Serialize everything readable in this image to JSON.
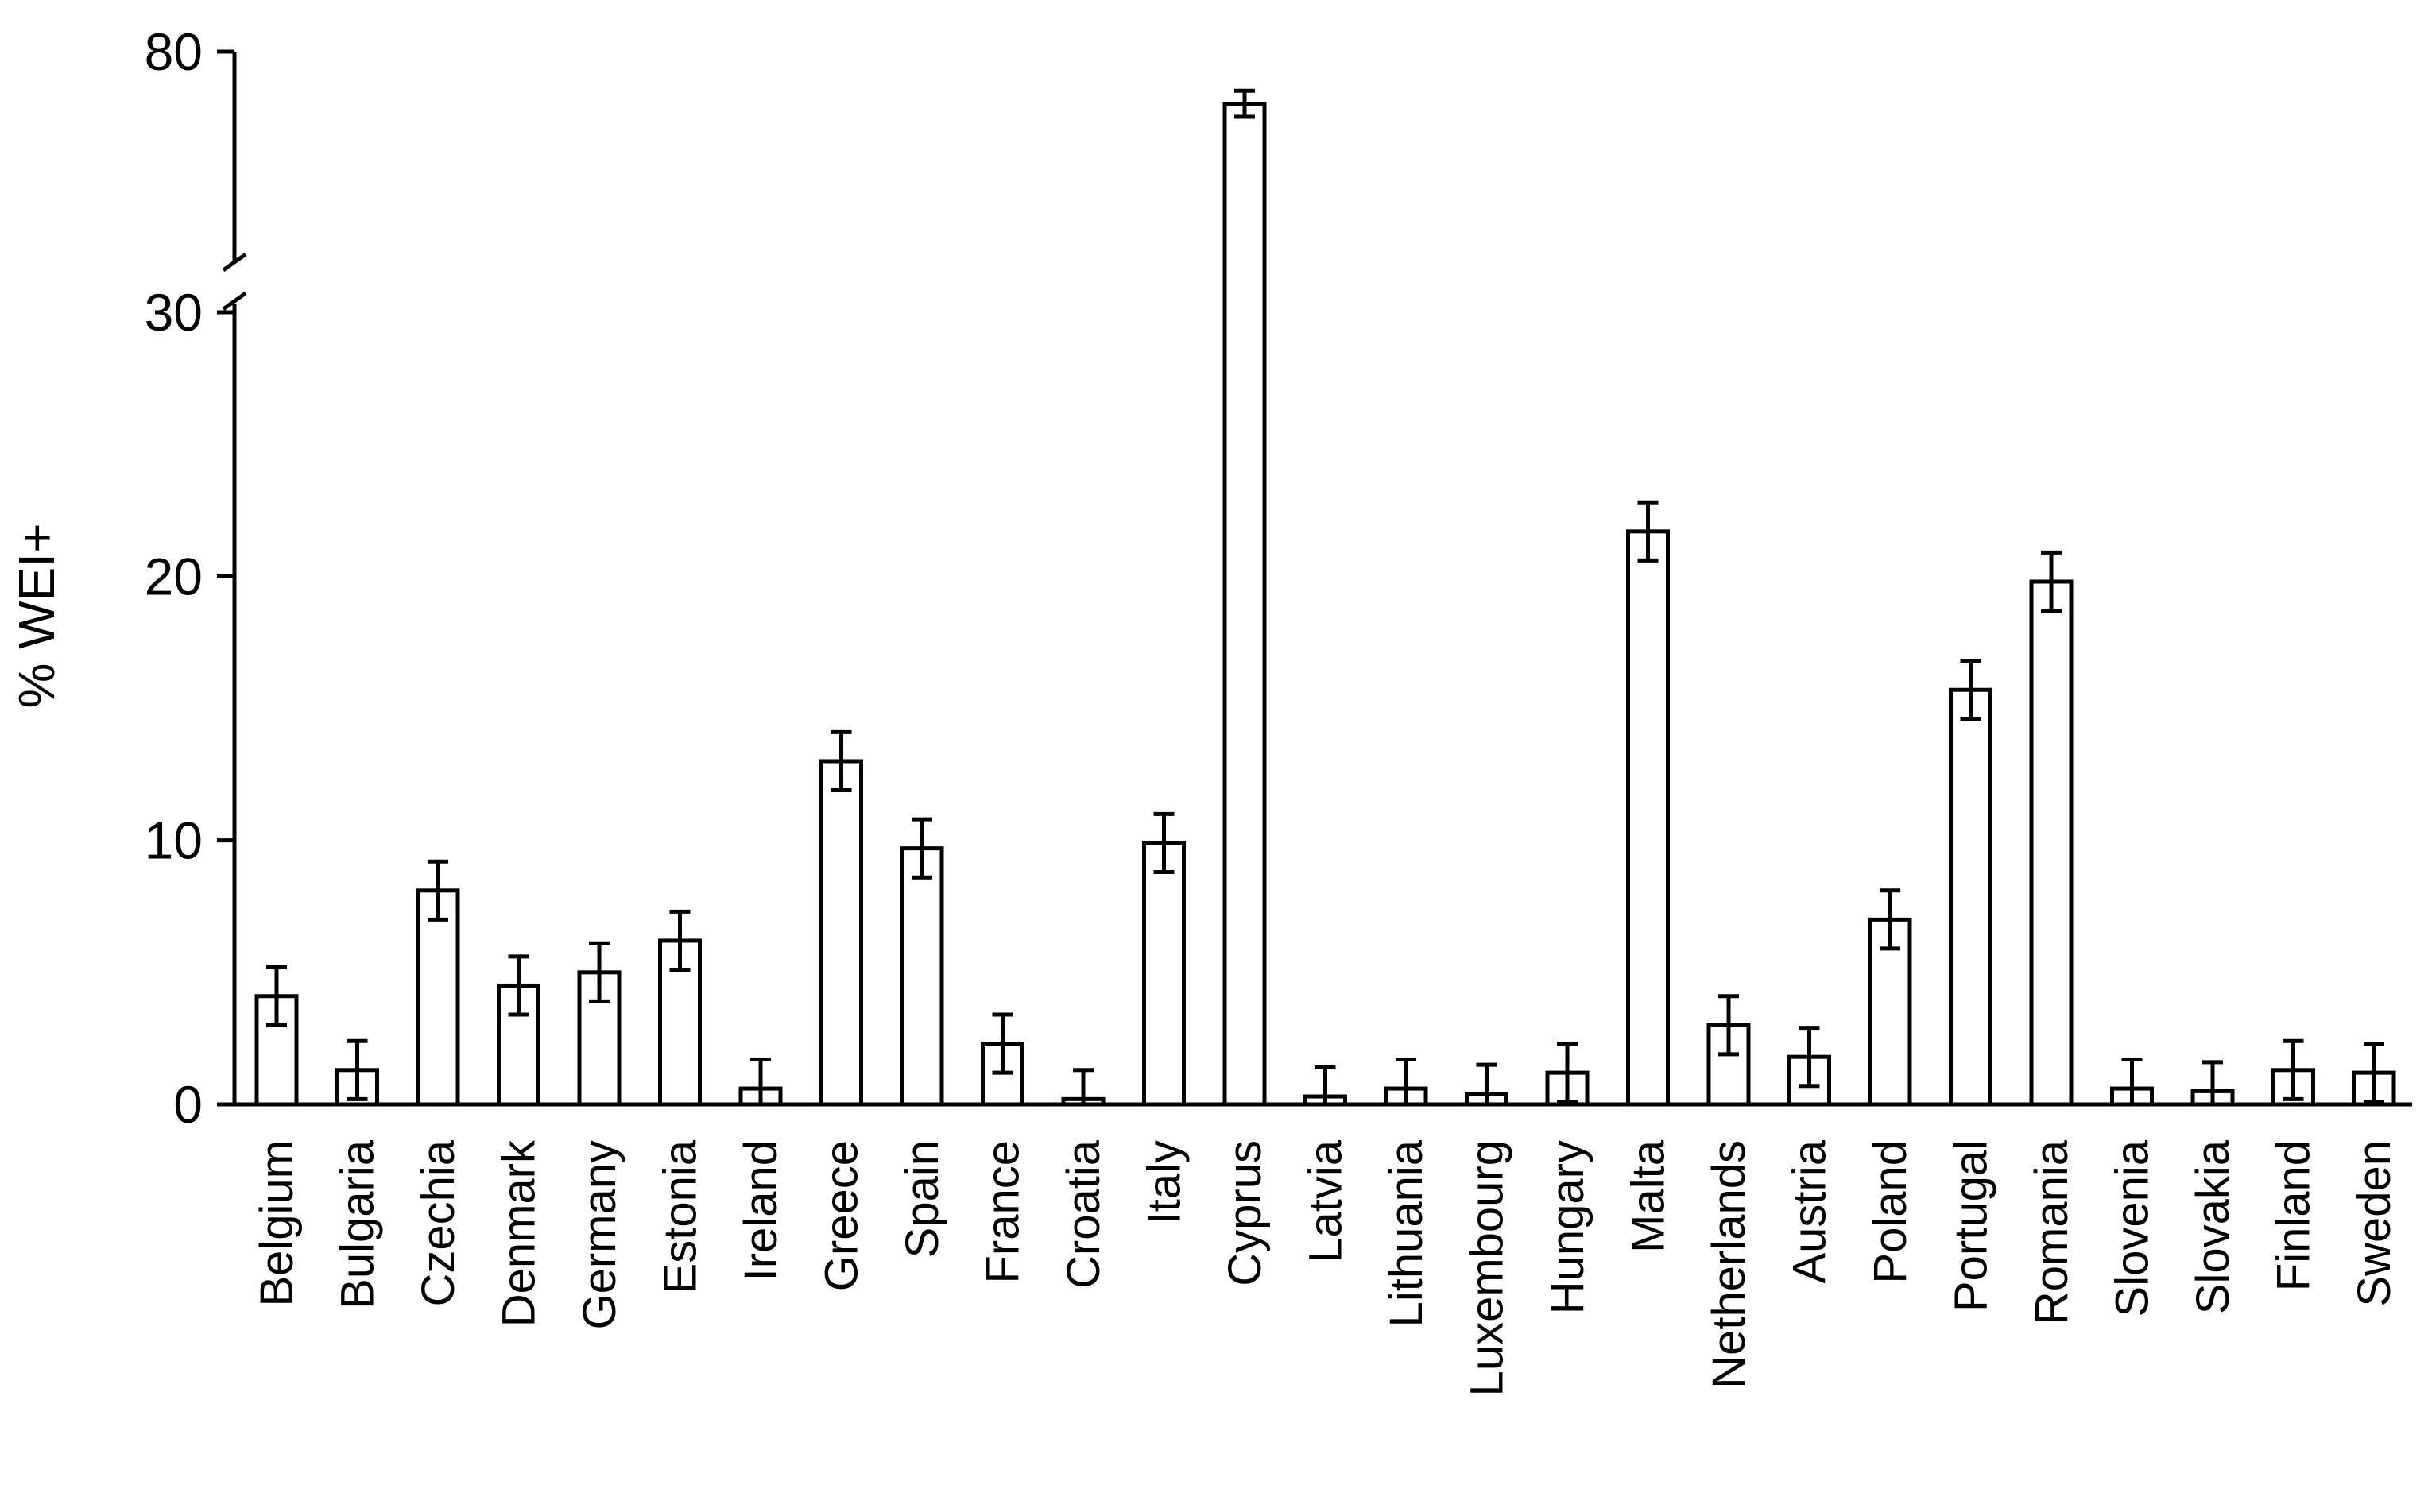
{
  "chart_data": {
    "type": "bar",
    "title": "",
    "xlabel": "",
    "ylabel": "%  WEI+",
    "ylim": [
      0,
      80
    ],
    "axis_break": [
      30,
      80
    ],
    "yticks": [
      "0",
      "10",
      "20",
      "30",
      "80"
    ],
    "categories": [
      "Belgium",
      "Bulgaria",
      "Czechia",
      "Denmark",
      "Germany",
      "Estonia",
      "Ireland",
      "Greece",
      "Spain",
      "France",
      "Croatia",
      "Italy",
      "Cyprus",
      "Latvia",
      "Lithuania",
      "Luxembourg",
      "Hungary",
      "Malta",
      "Netherlands",
      "Austria",
      "Poland",
      "Portugal",
      "Romania",
      "Slovenia",
      "Slovakia",
      "Finland",
      "Sweden"
    ],
    "values": [
      4.1,
      1.3,
      8.1,
      4.5,
      5.0,
      6.2,
      0.6,
      13.0,
      9.7,
      2.3,
      0.2,
      9.9,
      70.0,
      0.3,
      0.6,
      0.4,
      1.2,
      21.7,
      3.0,
      1.8,
      7.0,
      15.7,
      19.8,
      0.6,
      0.5,
      1.3,
      1.2
    ],
    "error": [
      1.1,
      1.1,
      1.1,
      1.1,
      1.1,
      1.1,
      1.1,
      1.1,
      1.1,
      1.1,
      1.1,
      1.1,
      2.5,
      1.1,
      1.1,
      1.1,
      1.1,
      1.1,
      1.1,
      1.1,
      1.1,
      1.1,
      1.1,
      1.1,
      1.1,
      1.1,
      1.1
    ],
    "grid": false,
    "legend": "none"
  }
}
